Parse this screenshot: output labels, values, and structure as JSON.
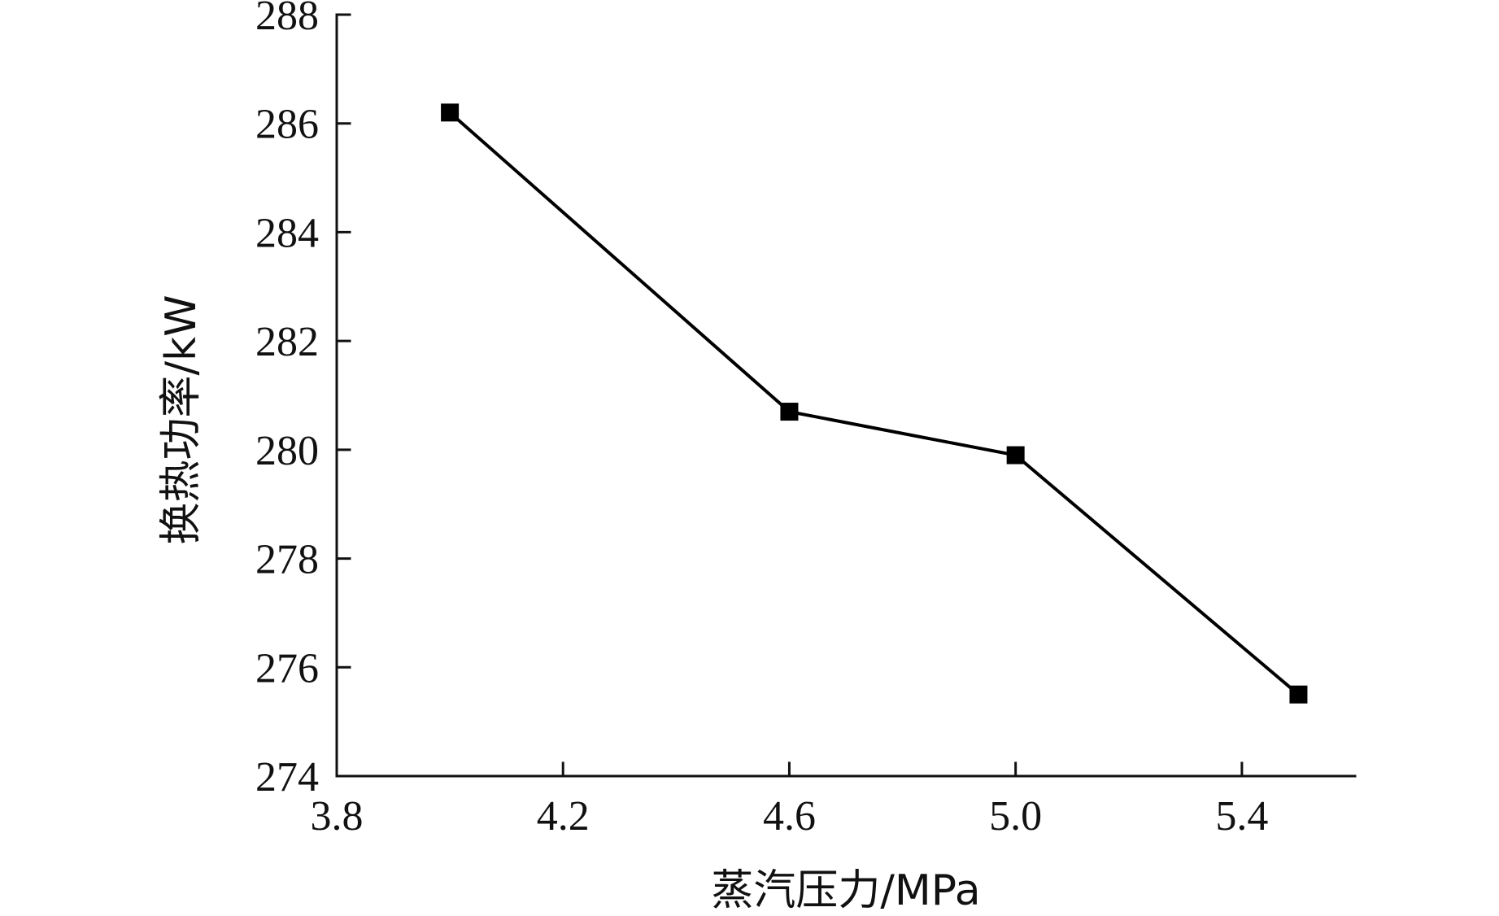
{
  "chart_data": {
    "type": "line",
    "title": "",
    "xlabel": "蒸汽压力/MPa",
    "ylabel": "换热功率/kW",
    "xlim": [
      3.8,
      5.6
    ],
    "ylim": [
      274,
      288
    ],
    "x_ticks": [
      "3.8",
      "4.2",
      "4.6",
      "5.0",
      "5.4"
    ],
    "y_ticks": [
      "274",
      "276",
      "278",
      "280",
      "282",
      "284",
      "286",
      "288"
    ],
    "grid": false,
    "legend": "none",
    "series": [
      {
        "name": "",
        "color": "#000000",
        "marker": "square",
        "x": [
          4.0,
          4.6,
          5.0,
          5.5
        ],
        "y": [
          286.2,
          280.7,
          279.9,
          275.5
        ]
      }
    ]
  }
}
